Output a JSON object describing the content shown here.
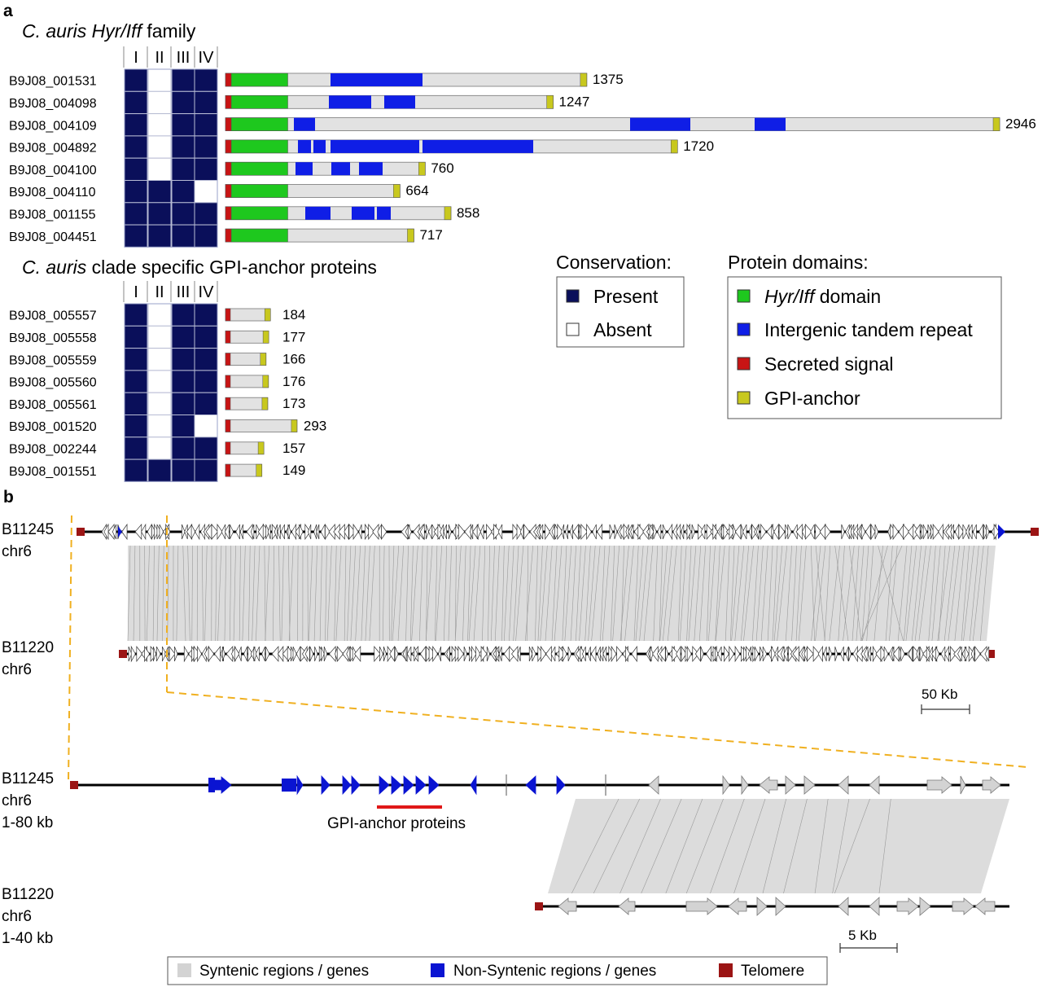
{
  "panel_a": {
    "label": "a",
    "title_hyr_em": "C. auris Hyr/Iff",
    "title_hyr_rest": " family",
    "title_gpi_em": "C. auris",
    "title_gpi_rest": " clade specific GPI-anchor proteins",
    "clade_headers": [
      "I",
      "II",
      "III",
      "IV"
    ],
    "max_length": 2946,
    "hyr_proteins": [
      {
        "id": "B9J08_001531",
        "length": "1375",
        "len": 1375,
        "clades": [
          1,
          0,
          1,
          1
        ],
        "hyr": [
          70,
          765
        ],
        "repeats": [
          [
            1290,
            2420
          ]
        ]
      },
      {
        "id": "B9J08_004098",
        "length": "1247",
        "len": 1247,
        "clades": [
          1,
          0,
          1,
          1
        ],
        "hyr": [
          70,
          765
        ],
        "repeats": [
          [
            1270,
            1790
          ],
          [
            1950,
            2330
          ]
        ]
      },
      {
        "id": "B9J08_004109",
        "length": "2946",
        "len": 2946,
        "clades": [
          1,
          0,
          1,
          1
        ],
        "hyr": [
          70,
          765
        ],
        "repeats": [
          [
            840,
            1100
          ],
          [
            4970,
            5710
          ],
          [
            6500,
            6880
          ]
        ]
      },
      {
        "id": "B9J08_004892",
        "length": "1720",
        "len": 1720,
        "clades": [
          1,
          0,
          1,
          1
        ],
        "hyr": [
          70,
          765
        ],
        "repeats": [
          [
            890,
            1050
          ],
          [
            1080,
            1230
          ],
          [
            1290,
            2380
          ],
          [
            2420,
            3780
          ]
        ]
      },
      {
        "id": "B9J08_004100",
        "length": "760",
        "len": 760,
        "clades": [
          1,
          0,
          1,
          1
        ],
        "hyr": [
          70,
          765
        ],
        "repeats": [
          [
            860,
            1070
          ],
          [
            1300,
            1530
          ],
          [
            1640,
            1930
          ]
        ]
      },
      {
        "id": "B9J08_004110",
        "length": "664",
        "len": 664,
        "clades": [
          1,
          1,
          1,
          0
        ],
        "hyr": [
          70,
          765
        ],
        "repeats": []
      },
      {
        "id": "B9J08_001155",
        "length": "858",
        "len": 858,
        "clades": [
          1,
          1,
          1,
          1
        ],
        "hyr": [
          70,
          765
        ],
        "repeats": [
          [
            980,
            1290
          ],
          [
            1550,
            1830
          ],
          [
            1860,
            2030
          ]
        ]
      },
      {
        "id": "B9J08_004451",
        "length": "717",
        "len": 717,
        "clades": [
          1,
          1,
          1,
          1
        ],
        "hyr": [
          70,
          765
        ],
        "repeats": []
      }
    ],
    "gpi_proteins": [
      {
        "id": "B9J08_005557",
        "length": "184",
        "len": 184,
        "clades": [
          1,
          0,
          1,
          1
        ]
      },
      {
        "id": "B9J08_005558",
        "length": "177",
        "len": 177,
        "clades": [
          1,
          0,
          1,
          1
        ]
      },
      {
        "id": "B9J08_005559",
        "length": "166",
        "len": 166,
        "clades": [
          1,
          0,
          1,
          1
        ]
      },
      {
        "id": "B9J08_005560",
        "length": "176",
        "len": 176,
        "clades": [
          1,
          0,
          1,
          1
        ]
      },
      {
        "id": "B9J08_005561",
        "length": "173",
        "len": 173,
        "clades": [
          1,
          0,
          1,
          1
        ]
      },
      {
        "id": "B9J08_001520",
        "length": "293",
        "len": 293,
        "clades": [
          1,
          0,
          1,
          0
        ]
      },
      {
        "id": "B9J08_002244",
        "length": "157",
        "len": 157,
        "clades": [
          1,
          0,
          1,
          1
        ]
      },
      {
        "id": "B9J08_001551",
        "length": "149",
        "len": 149,
        "clades": [
          1,
          1,
          1,
          1
        ]
      }
    ],
    "conservation_legend": {
      "title": "Conservation:",
      "items": [
        {
          "label": "Present",
          "color": "#0a0f5a"
        },
        {
          "label": "Absent",
          "color": "#ffffff"
        }
      ]
    },
    "domain_legend": {
      "title": "Protein domains:",
      "items": [
        {
          "label_em": "Hyr/Iff",
          "label_rest": " domain",
          "color": "#1ec81e"
        },
        {
          "label_em": "",
          "label_rest": "Intergenic tandem repeat",
          "color": "#0f1ee6"
        },
        {
          "label_em": "",
          "label_rest": "Secreted signal",
          "color": "#c81414"
        },
        {
          "label_em": "",
          "label_rest": "GPI-anchor",
          "color": "#c8c81e"
        }
      ]
    }
  },
  "panel_b": {
    "label": "b",
    "track1": [
      "B11245",
      "chr6"
    ],
    "track2": [
      "B11220",
      "chr6"
    ],
    "zoom_track1": [
      "B11245",
      "chr6",
      "1-80 kb"
    ],
    "zoom_track2": [
      "B11220",
      "chr6",
      "1-40 kb"
    ],
    "scale_large": "50 Kb",
    "scale_small": "5 Kb",
    "gpi_annotation": "GPI-anchor proteins",
    "legend": [
      {
        "label": "Syntenic regions / genes",
        "color": "#d3d3d3"
      },
      {
        "label": "Non-Syntenic regions / genes",
        "color": "#0a14d2"
      },
      {
        "label": "Telomere",
        "color": "#9b1414"
      }
    ]
  }
}
